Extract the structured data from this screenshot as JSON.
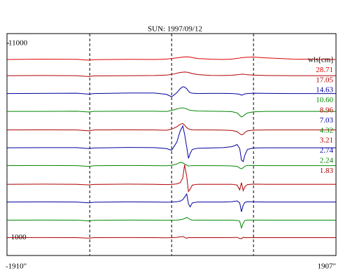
{
  "chart_data": {
    "type": "line",
    "title": "SUN: 1997/09/12",
    "xlim": [
      -1910,
      1907
    ],
    "xticks": [
      {
        "value": -1910,
        "label": "-1910\""
      },
      {
        "value": 1907,
        "label": "1907\""
      }
    ],
    "ylim": [
      -2100,
      11600
    ],
    "yticks": [
      11000,
      -1000
    ],
    "vlines": [
      -950,
      0,
      950
    ],
    "legend_title": "wls[cm]",
    "legend": "upper right",
    "x": [
      -1910,
      -1500,
      -1100,
      -960,
      -900,
      -500,
      -200,
      -60,
      0,
      60,
      100,
      130,
      150,
      175,
      195,
      215,
      240,
      300,
      450,
      600,
      700,
      760,
      790,
      810,
      830,
      850,
      880,
      950,
      1100,
      1400,
      1907
    ],
    "series": [
      {
        "name": "28.71",
        "color": "#e00000",
        "values": [
          10000,
          10020,
          10010,
          9960,
          9990,
          10010,
          10000,
          10030,
          10060,
          10100,
          10130,
          10150,
          10160,
          10170,
          10160,
          10150,
          10120,
          10060,
          10020,
          10000,
          10030,
          10070,
          10090,
          10110,
          10120,
          10130,
          10140,
          10150,
          10100,
          10030,
          10000
        ]
      },
      {
        "name": "17.05",
        "color": "#b00000",
        "values": [
          9000,
          9010,
          9000,
          8950,
          8990,
          9000,
          9010,
          9040,
          9080,
          9150,
          9200,
          9220,
          9230,
          9220,
          9200,
          9170,
          9130,
          9070,
          9020,
          9010,
          9030,
          9060,
          9080,
          9090,
          9100,
          9080,
          9060,
          9040,
          9010,
          9000,
          9000
        ]
      },
      {
        "name": "14.63",
        "color": "#0000a0",
        "values": [
          7900,
          7910,
          7920,
          7860,
          7900,
          7930,
          7930,
          7850,
          7700,
          7950,
          8200,
          8320,
          8300,
          8200,
          8050,
          7950,
          7920,
          7900,
          7910,
          7910,
          7900,
          7880,
          7850,
          7800,
          7830,
          7880,
          7900,
          7920,
          7910,
          7900,
          7900
        ]
      },
      {
        "name": "10.60",
        "color": "#008800",
        "values": [
          6800,
          6800,
          6810,
          6760,
          6800,
          6810,
          6810,
          6790,
          6850,
          6950,
          7000,
          7020,
          6990,
          6950,
          6900,
          6870,
          6850,
          6820,
          6810,
          6800,
          6780,
          6700,
          6550,
          6450,
          6500,
          6600,
          6700,
          6770,
          6800,
          6800,
          6800
        ]
      },
      {
        "name": "8.96",
        "color": "#b00000",
        "values": [
          5650,
          5660,
          5650,
          5600,
          5650,
          5660,
          5650,
          5630,
          5700,
          5850,
          6000,
          6050,
          5950,
          5800,
          5720,
          5680,
          5660,
          5650,
          5650,
          5640,
          5620,
          5550,
          5420,
          5350,
          5380,
          5500,
          5600,
          5640,
          5650,
          5650,
          5650
        ]
      },
      {
        "name": "7.03",
        "color": "#0000a0",
        "values": [
          4550,
          4560,
          4560,
          4500,
          4540,
          4570,
          4560,
          4500,
          4400,
          4900,
          5600,
          5900,
          5400,
          4600,
          3900,
          4200,
          4450,
          4520,
          4540,
          4560,
          4620,
          4750,
          4500,
          3800,
          3700,
          4100,
          4450,
          4540,
          4550,
          4550,
          4550
        ]
      },
      {
        "name": "4.32",
        "color": "#008800",
        "values": [
          3450,
          3460,
          3450,
          3400,
          3440,
          3460,
          3450,
          3440,
          3470,
          3550,
          3650,
          3620,
          3550,
          3480,
          3420,
          3440,
          3450,
          3450,
          3450,
          3440,
          3430,
          3400,
          3300,
          3250,
          3320,
          3420,
          3460,
          3460,
          3450,
          3450,
          3450
        ]
      },
      {
        "name": "3.21",
        "color": "#b00000",
        "values": [
          2300,
          2310,
          2300,
          2260,
          2290,
          2310,
          2300,
          2280,
          2290,
          2320,
          2400,
          2700,
          3500,
          2800,
          1850,
          2000,
          2250,
          2300,
          2300,
          2300,
          2300,
          2250,
          1950,
          2400,
          1900,
          2150,
          2280,
          2310,
          2300,
          2300,
          2300
        ]
      },
      {
        "name": "2.74",
        "color": "#0000a0",
        "values": [
          1200,
          1210,
          1200,
          1150,
          1190,
          1210,
          1200,
          1190,
          1200,
          1220,
          1260,
          1350,
          1500,
          1700,
          1100,
          900,
          1150,
          1200,
          1200,
          1200,
          1220,
          1270,
          1150,
          600,
          1000,
          1180,
          1220,
          1210,
          1200,
          1200,
          1200
        ]
      },
      {
        "name": "2.24",
        "color": "#008800",
        "values": [
          80,
          90,
          80,
          40,
          70,
          90,
          80,
          70,
          80,
          90,
          110,
          140,
          180,
          250,
          200,
          120,
          90,
          80,
          80,
          80,
          80,
          60,
          20,
          -400,
          -100,
          60,
          90,
          90,
          80,
          80,
          80
        ]
      },
      {
        "name": "1.83",
        "color": "#b00000",
        "values": [
          -1000,
          -990,
          -1000,
          -1030,
          -1000,
          -990,
          -1000,
          -1010,
          -1000,
          -980,
          -950,
          -930,
          -980,
          -1040,
          -990,
          -1000,
          -1000,
          -1000,
          -1000,
          -1000,
          -990,
          -980,
          -1050,
          -1060,
          -980,
          -1000,
          -1000,
          -1000,
          -1000,
          -1000,
          -1000
        ]
      }
    ]
  }
}
